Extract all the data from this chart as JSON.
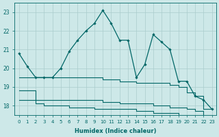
{
  "xlabel": "Humidex (Indice chaleur)",
  "x": [
    0,
    1,
    2,
    3,
    4,
    5,
    6,
    7,
    8,
    9,
    10,
    11,
    12,
    13,
    14,
    15,
    16,
    17,
    18,
    19,
    20,
    21,
    22,
    23
  ],
  "main_y": [
    20.8,
    20.1,
    19.5,
    19.5,
    19.5,
    20.0,
    20.9,
    21.5,
    22.0,
    22.4,
    23.1,
    22.4,
    21.5,
    21.5,
    19.5,
    20.2,
    21.8,
    21.4,
    21.0,
    19.3,
    19.3,
    18.5,
    18.3,
    17.8
  ],
  "step1_x": [
    0,
    1,
    2,
    3,
    4,
    5,
    6,
    7,
    8,
    9,
    10,
    11,
    12,
    13,
    14,
    15,
    16,
    17,
    18,
    19,
    20,
    21,
    22,
    23
  ],
  "step1_y": [
    19.5,
    19.5,
    19.5,
    19.5,
    19.5,
    19.5,
    19.5,
    19.5,
    19.5,
    19.5,
    19.4,
    19.4,
    19.3,
    19.3,
    19.2,
    19.2,
    19.2,
    19.2,
    19.1,
    19.0,
    18.7,
    18.5,
    17.8,
    17.8
  ],
  "step2_x": [
    0,
    1,
    2,
    3,
    4,
    5,
    6,
    7,
    8,
    9,
    10,
    11,
    12,
    13,
    14,
    15,
    16,
    17,
    18,
    19,
    20,
    21,
    22,
    23
  ],
  "step2_y": [
    18.8,
    18.8,
    18.3,
    18.3,
    18.3,
    18.3,
    18.3,
    18.3,
    18.3,
    18.3,
    18.2,
    18.2,
    18.1,
    18.1,
    18.1,
    18.1,
    18.0,
    18.0,
    17.9,
    17.9,
    17.8,
    17.7,
    17.5,
    17.5
  ],
  "step3_x": [
    0,
    1,
    2,
    3,
    4,
    5,
    6,
    7,
    8,
    9,
    10,
    11,
    12,
    13,
    14,
    15,
    16,
    17,
    18,
    19,
    20,
    21,
    22,
    23
  ],
  "step3_y": [
    18.3,
    18.3,
    18.1,
    18.0,
    18.0,
    18.0,
    17.9,
    17.9,
    17.9,
    17.8,
    17.8,
    17.8,
    17.8,
    17.8,
    17.7,
    17.7,
    17.6,
    17.6,
    17.6,
    17.5,
    17.5,
    17.5,
    17.4,
    17.4
  ],
  "ylim": [
    17.5,
    23.5
  ],
  "yticks": [
    18,
    19,
    20,
    21,
    22,
    23
  ],
  "bg_color": "#cde8e8",
  "grid_color": "#aacccc",
  "line_color": "#006666",
  "fig_bg": "#cde8e8"
}
